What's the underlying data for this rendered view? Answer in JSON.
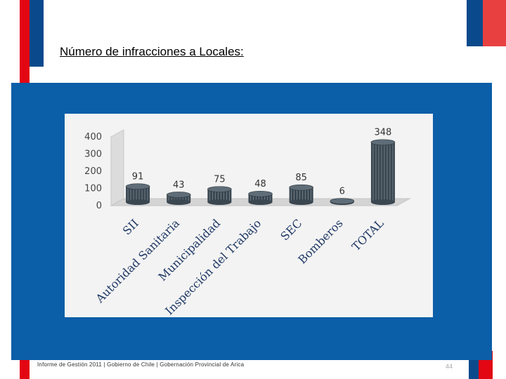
{
  "title": "Número de infracciones a Locales",
  "title_suffix": ":",
  "footer": "Informe de Gestión 2011 | Gobierno de Chile | Gobernación Provincial de Arica",
  "page_number": "44",
  "colors": {
    "red": "#e30613",
    "blue": "#0a4a8c",
    "panel_blue": "#0b5ea8"
  },
  "chart_data": {
    "type": "bar",
    "title": "",
    "xlabel": "",
    "ylabel": "",
    "ylim": [
      0,
      400
    ],
    "yticks": [
      "0",
      "100",
      "200",
      "300",
      "400"
    ],
    "categories": [
      "SII",
      "Autoridad Sanitaria",
      "Municipalidad",
      "Inspección del Trabajo",
      "SEC",
      "Bomberos",
      "TOTAL"
    ],
    "values": [
      91,
      43,
      75,
      48,
      85,
      6,
      348
    ],
    "value_labels": [
      "91",
      "43",
      "75",
      "48",
      "85",
      "6",
      "348"
    ]
  }
}
